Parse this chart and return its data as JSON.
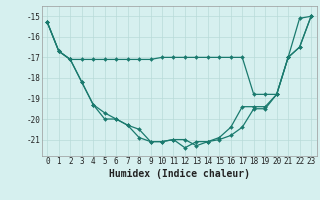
{
  "xlabel": "Humidex (Indice chaleur)",
  "x": [
    0,
    1,
    2,
    3,
    4,
    5,
    6,
    7,
    8,
    9,
    10,
    11,
    12,
    13,
    14,
    15,
    16,
    17,
    18,
    19,
    20,
    21,
    22,
    23
  ],
  "line1": [
    -15.3,
    -16.7,
    -17.1,
    -17.1,
    -17.1,
    -17.1,
    -17.1,
    -17.1,
    -17.1,
    -17.1,
    -17.0,
    -17.0,
    -17.0,
    -17.0,
    -17.0,
    -17.0,
    -17.0,
    -17.0,
    -18.8,
    -18.8,
    -18.8,
    -17.0,
    -16.5,
    -15.0
  ],
  "line2": [
    -15.3,
    -16.7,
    -17.1,
    -18.2,
    -19.3,
    -20.0,
    -20.0,
    -20.3,
    -20.5,
    -21.1,
    -21.1,
    -21.0,
    -21.0,
    -21.3,
    -21.1,
    -21.0,
    -20.8,
    -20.4,
    -19.5,
    -19.5,
    -18.8,
    -17.0,
    -15.1,
    -15.0
  ],
  "line3": [
    -15.3,
    -16.7,
    -17.1,
    -18.2,
    -19.3,
    -19.7,
    -20.0,
    -20.3,
    -20.9,
    -21.1,
    -21.1,
    -21.0,
    -21.4,
    -21.1,
    -21.1,
    -20.9,
    -20.4,
    -19.4,
    -19.4,
    -19.4,
    -18.8,
    -17.0,
    -16.5,
    -15.0
  ],
  "color": "#1a7a6e",
  "bg_color": "#d6f0ef",
  "grid_color": "#b8dbd9",
  "ylim": [
    -21.8,
    -14.5
  ],
  "yticks": [
    -21,
    -20,
    -19,
    -18,
    -17,
    -16,
    -15
  ],
  "xticks": [
    0,
    1,
    2,
    3,
    4,
    5,
    6,
    7,
    8,
    9,
    10,
    11,
    12,
    13,
    14,
    15,
    16,
    17,
    18,
    19,
    20,
    21,
    22,
    23
  ],
  "tick_fontsize": 5.5,
  "xlabel_fontsize": 7
}
